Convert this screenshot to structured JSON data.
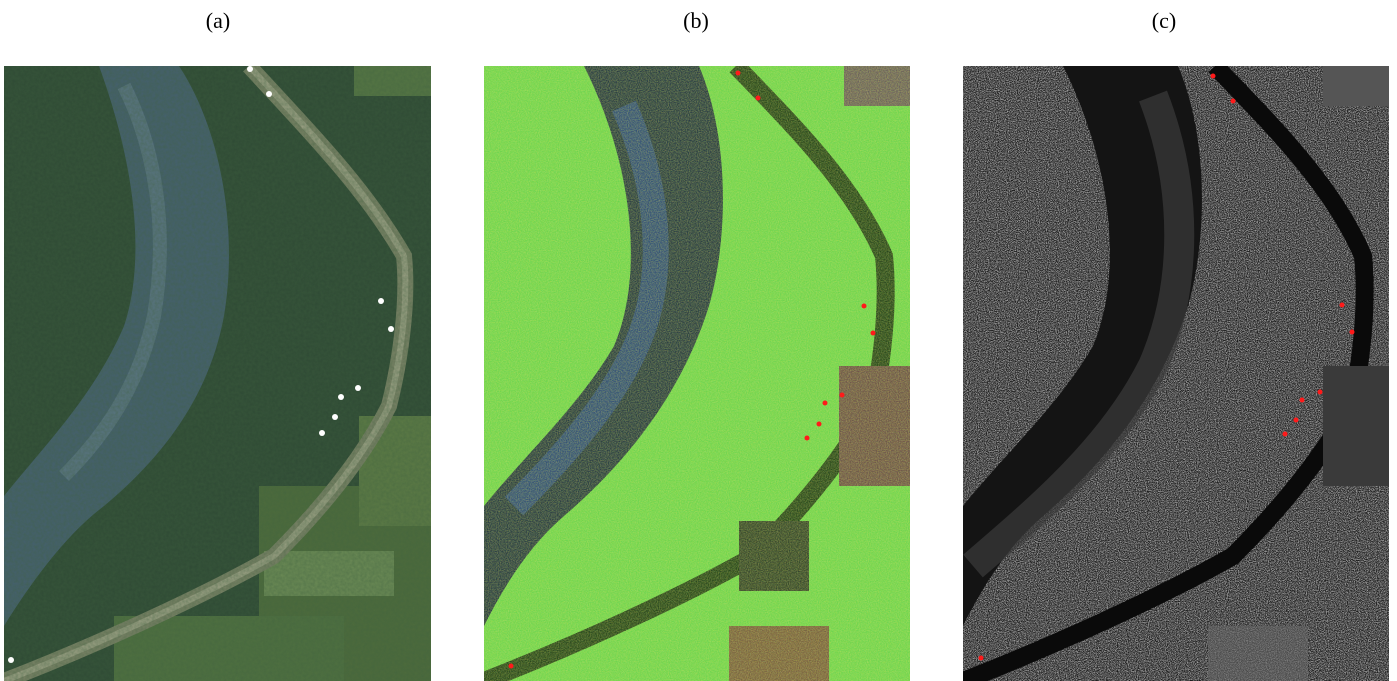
{
  "figure": {
    "panels": [
      {
        "label": "(a)",
        "kind": "optical aerial image"
      },
      {
        "label": "(b)",
        "kind": "false-color radar image"
      },
      {
        "label": "(c)",
        "kind": "grayscale radar image"
      }
    ]
  },
  "colors": {
    "marker_a": "#ffffff",
    "marker_bc": "#ff1a1a"
  }
}
